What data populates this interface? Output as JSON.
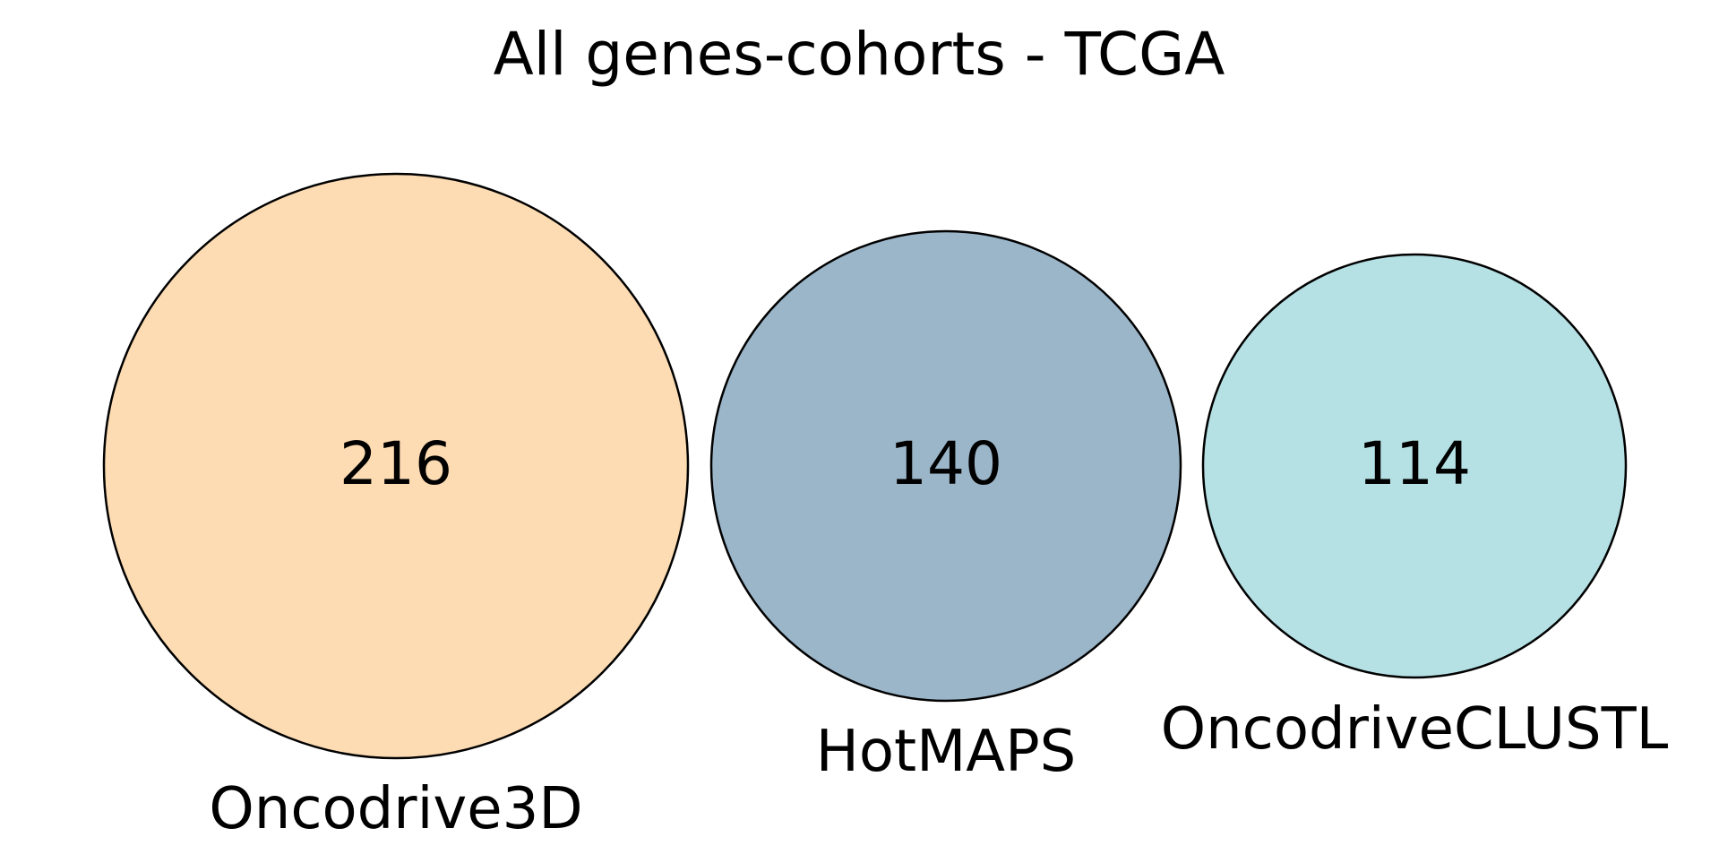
{
  "chart_data": {
    "type": "venn",
    "title": "All genes-cohorts - TCGA",
    "sets": [
      {
        "name": "Oncodrive3D",
        "value": 216,
        "color": "#fddcb3"
      },
      {
        "name": "HotMAPS",
        "value": 140,
        "color": "#9bb6c9"
      },
      {
        "name": "OncodriveCLUSTL",
        "value": 114,
        "color": "#b5e1e5"
      }
    ],
    "overlaps": []
  }
}
